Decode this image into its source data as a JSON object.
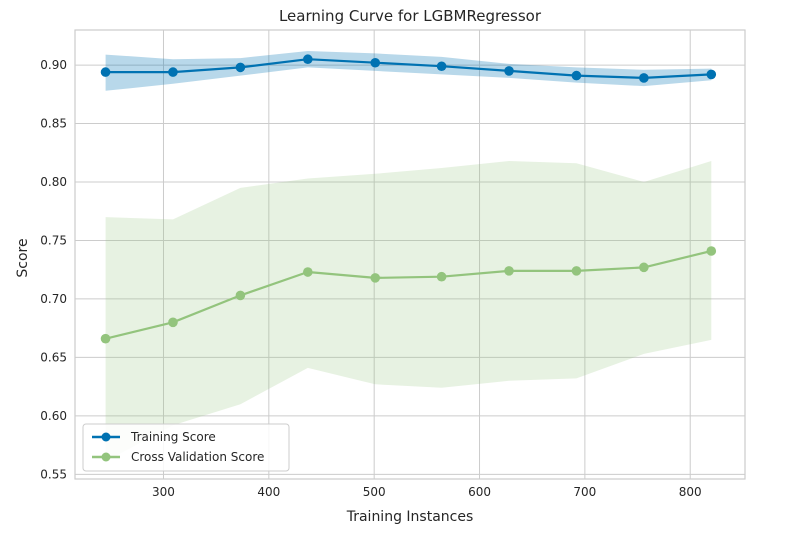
{
  "chart_data": {
    "type": "line",
    "title": "Learning Curve for LGBMRegressor",
    "xlabel": "Training Instances",
    "ylabel": "Score",
    "xlim": [
      216,
      852
    ],
    "ylim": [
      0.546,
      0.93
    ],
    "xticks": [
      300,
      400,
      500,
      600,
      700,
      800
    ],
    "yticks": [
      0.55,
      0.6,
      0.65,
      0.7,
      0.75,
      0.8,
      0.85,
      0.9
    ],
    "grid": true,
    "legend_position": "lower-left",
    "x": [
      245,
      309,
      373,
      437,
      501,
      564,
      628,
      692,
      756,
      820
    ],
    "series": [
      {
        "name": "Training Score",
        "color": "#0072b2",
        "values": [
          0.894,
          0.894,
          0.898,
          0.905,
          0.902,
          0.899,
          0.895,
          0.891,
          0.889,
          0.892
        ],
        "band_upper": [
          0.909,
          0.905,
          0.906,
          0.912,
          0.91,
          0.907,
          0.901,
          0.898,
          0.896,
          0.897
        ],
        "band_lower": [
          0.878,
          0.884,
          0.891,
          0.898,
          0.895,
          0.892,
          0.889,
          0.885,
          0.882,
          0.887
        ]
      },
      {
        "name": "Cross Validation Score",
        "color": "#93c47d",
        "values": [
          0.666,
          0.68,
          0.703,
          0.723,
          0.718,
          0.719,
          0.724,
          0.724,
          0.727,
          0.741
        ],
        "band_upper": [
          0.77,
          0.768,
          0.795,
          0.803,
          0.807,
          0.812,
          0.818,
          0.816,
          0.8,
          0.818
        ],
        "band_lower": [
          0.561,
          0.592,
          0.61,
          0.641,
          0.627,
          0.624,
          0.63,
          0.632,
          0.653,
          0.665
        ]
      }
    ]
  }
}
